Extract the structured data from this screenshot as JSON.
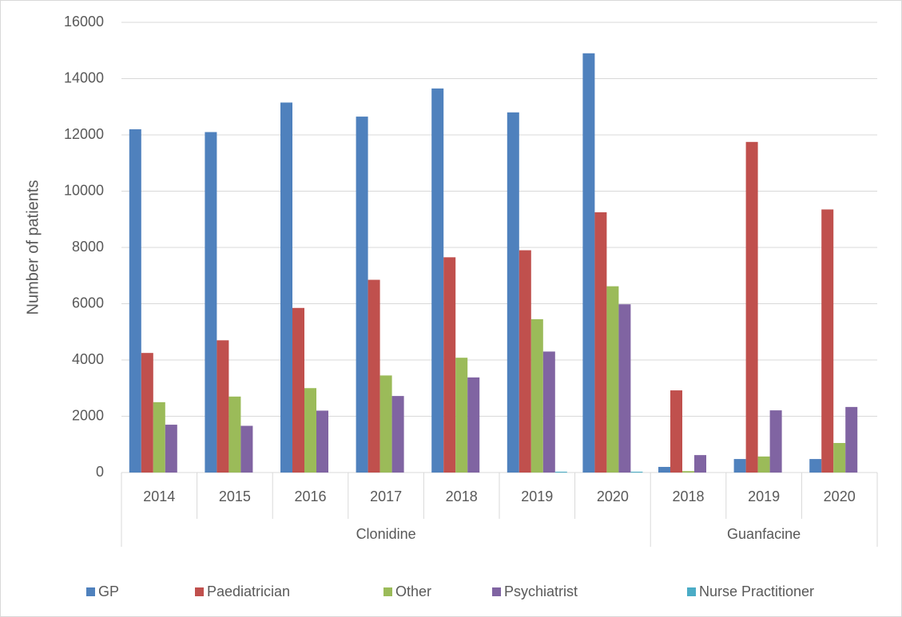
{
  "chart_data": {
    "type": "bar",
    "y_label": "Number of patients",
    "groups": [
      {
        "name": "Clonidine",
        "categories": [
          "2014",
          "2015",
          "2016",
          "2017",
          "2018",
          "2019",
          "2020"
        ]
      },
      {
        "name": "Guanfacine",
        "categories": [
          "2018",
          "2019",
          "2020"
        ]
      }
    ],
    "series": [
      {
        "name": "GP",
        "color": "#4f81bd",
        "values": [
          12200,
          12100,
          13150,
          12650,
          13650,
          12800,
          14900,
          200,
          480,
          480
        ]
      },
      {
        "name": "Paediatrician",
        "color": "#c0504d",
        "values": [
          4250,
          4700,
          5850,
          6850,
          7650,
          7900,
          9250,
          2920,
          11750,
          9350
        ]
      },
      {
        "name": "Other",
        "color": "#9bbb59",
        "values": [
          2500,
          2700,
          3000,
          3450,
          4080,
          5450,
          6620,
          50,
          570,
          1050
        ]
      },
      {
        "name": "Psychiatrist",
        "color": "#8064a2",
        "values": [
          1700,
          1660,
          2200,
          2720,
          3380,
          4300,
          5980,
          620,
          2210,
          2330
        ]
      },
      {
        "name": "Nurse Practitioner",
        "color": "#4bacc6",
        "values": [
          0,
          0,
          0,
          0,
          0,
          30,
          30,
          0,
          0,
          0
        ]
      }
    ],
    "ylim": [
      0,
      16000
    ],
    "yticks": [
      0,
      2000,
      4000,
      6000,
      8000,
      10000,
      12000,
      14000,
      16000
    ],
    "grid": true,
    "legend": "bottom"
  }
}
